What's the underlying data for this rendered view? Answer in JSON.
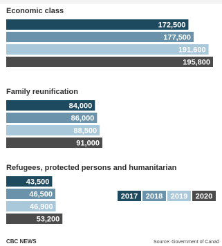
{
  "chart_data": {
    "type": "bar",
    "orientation": "horizontal",
    "groups": [
      {
        "title": "Economic class",
        "values": [
          172500,
          177500,
          191600,
          195800
        ],
        "labels": [
          "172,500",
          "177,500",
          "191,600",
          "195,800"
        ]
      },
      {
        "title": "Family reunification",
        "values": [
          84000,
          86000,
          88500,
          91000
        ],
        "labels": [
          "84,000",
          "86,000",
          "88,500",
          "91,000"
        ]
      },
      {
        "title": "Refugees, protected persons and humanitarian",
        "values": [
          43500,
          46500,
          46900,
          53200
        ],
        "labels": [
          "43,500",
          "46,500",
          "46,900",
          "53,200"
        ]
      }
    ],
    "series": [
      {
        "name": "2017",
        "color": "#1e4a60"
      },
      {
        "name": "2018",
        "color": "#6a93ab"
      },
      {
        "name": "2019",
        "color": "#a9c8da"
      },
      {
        "name": "2020",
        "color": "#4b4b4b"
      }
    ],
    "legend_position": "right of third group",
    "xlim": [
      0,
      195800
    ]
  },
  "footer": {
    "source_left": "CBC NEWS",
    "source_right": "Source: Government of Canad"
  }
}
